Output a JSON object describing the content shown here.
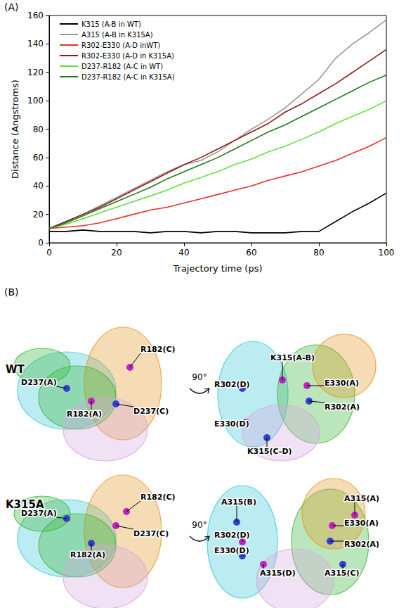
{
  "chart_data": {
    "type": "line",
    "panel": "(A)",
    "x_label": "Trajectory time (ps)",
    "y_label": "Distance (Angstroms)",
    "x": [
      0,
      5,
      10,
      15,
      20,
      25,
      30,
      35,
      40,
      45,
      50,
      55,
      60,
      65,
      70,
      75,
      80,
      85,
      90,
      95,
      100
    ],
    "series": [
      {
        "name": "K315 (A-B in WT)",
        "color": "#000000",
        "values": [
          8,
          8,
          9,
          8,
          8,
          8,
          7,
          8,
          8,
          7,
          8,
          8,
          7,
          7,
          7,
          8,
          8,
          15,
          22,
          28,
          35
        ]
      },
      {
        "name": "A315 (A-B in K315A)",
        "color": "#999999",
        "values": [
          10,
          15,
          20,
          26,
          32,
          38,
          44,
          50,
          55,
          58,
          64,
          72,
          80,
          87,
          95,
          105,
          115,
          130,
          140,
          148,
          157
        ]
      },
      {
        "name": "R302-E330 (A-D inWT)",
        "color": "#e8302a",
        "values": [
          10,
          11,
          12,
          14,
          17,
          20,
          23,
          25,
          28,
          31,
          34,
          37,
          40,
          44,
          47,
          50,
          54,
          58,
          63,
          68,
          74
        ]
      },
      {
        "name": "R302-E330 (A-D in K315A)",
        "color": "#8b1a1a",
        "values": [
          10,
          15,
          20,
          25,
          31,
          37,
          43,
          49,
          55,
          60,
          66,
          72,
          78,
          84,
          92,
          98,
          105,
          112,
          120,
          128,
          136
        ]
      },
      {
        "name": "D237-R182 (A-C in WT)",
        "color": "#66dd44",
        "values": [
          10,
          13,
          17,
          21,
          25,
          29,
          33,
          37,
          42,
          46,
          50,
          55,
          59,
          64,
          68,
          73,
          78,
          84,
          89,
          94,
          100
        ]
      },
      {
        "name": "D237-R182 (A-C in K315A)",
        "color": "#1a7a1a",
        "values": [
          10,
          14,
          19,
          24,
          29,
          34,
          39,
          45,
          50,
          55,
          60,
          66,
          72,
          78,
          83,
          89,
          95,
          101,
          107,
          113,
          118
        ]
      }
    ],
    "xlim": [
      0,
      100
    ],
    "xticks": [
      0,
      20,
      40,
      60,
      80,
      100
    ],
    "ylim": [
      0,
      160
    ],
    "yticks": [
      0,
      20,
      40,
      60,
      80,
      100,
      120,
      140,
      160
    ],
    "legend": "upper left",
    "grid": false
  },
  "panel_b": {
    "label": "(B)",
    "rotation": "90°",
    "rows": [
      {
        "name": "WT",
        "views": [
          {
            "labels": [
              "R182(C)",
              "D237(A)",
              "R182(A)",
              "D237(C)"
            ]
          },
          {
            "labels": [
              "K315(A-B)",
              "R302(D)",
              "E330(A)",
              "R302(A)",
              "E330(D)",
              "K315(C-D)"
            ]
          }
        ]
      },
      {
        "name": "K315A",
        "views": [
          {
            "labels": [
              "R182(C)",
              "D237(A)",
              "D237(C)",
              "R182(A)"
            ]
          },
          {
            "labels": [
              "A315(A)",
              "A315(B)",
              "E330(A)",
              "R302(A)",
              "R302(D)",
              "E330(D)",
              "A315(D)",
              "A315(C)"
            ]
          }
        ]
      }
    ]
  }
}
